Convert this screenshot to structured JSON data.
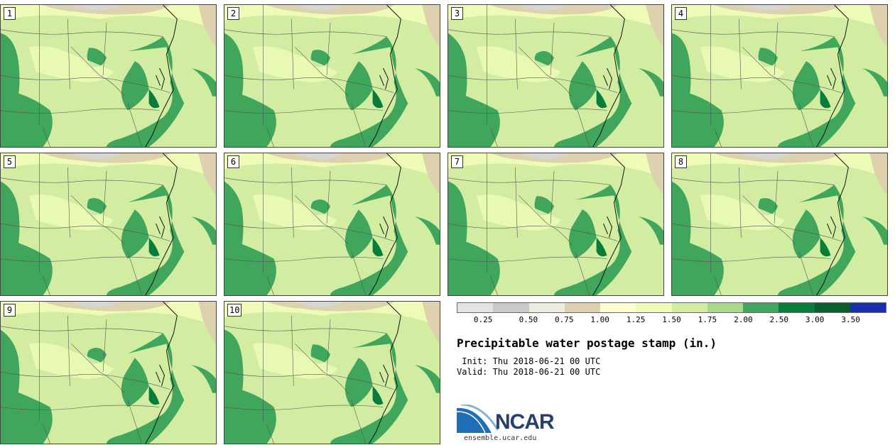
{
  "panels": [
    {
      "label": "1"
    },
    {
      "label": "2"
    },
    {
      "label": "3"
    },
    {
      "label": "4"
    },
    {
      "label": "5"
    },
    {
      "label": "6"
    },
    {
      "label": "7"
    },
    {
      "label": "8"
    },
    {
      "label": "9"
    },
    {
      "label": "10"
    }
  ],
  "legend": {
    "ticks": [
      "0.25",
      "0.50",
      "0.75",
      "1.00",
      "1.25",
      "1.50",
      "1.75",
      "2.00",
      "2.50",
      "3.00",
      "3.50"
    ],
    "colors": [
      "#e3e3e3",
      "#c9c9c9",
      "#ededdf",
      "#ded2ae",
      "#ffffd0",
      "#eefbb6",
      "#d2eda2",
      "#a9da8a",
      "#3fa65c",
      "#077d3c",
      "#0a5e2e",
      "#1a2fb0"
    ]
  },
  "title": "Precipitable water postage stamp (in.)",
  "init_line": " Init: Thu 2018-06-21 00 UTC",
  "valid_line": "Valid: Thu 2018-06-21 00 UTC",
  "logo": {
    "name": "NCAR",
    "url": "ensemble.ucar.edu"
  },
  "map_colors": {
    "light": "#eefbb6",
    "mid": "#a9da8a",
    "pale": "#d2eda2",
    "dark": "#3fa65c",
    "darker": "#077d3c",
    "tan": "#ded2ae",
    "gray": "#d6d6d6"
  }
}
